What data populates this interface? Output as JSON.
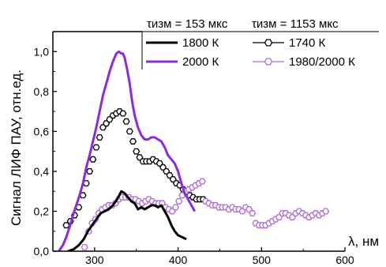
{
  "chart_data": {
    "type": "line",
    "ylabel": "Сигнал ЛИФ ПАУ, отн.ед.",
    "xlabel": "λ, нм",
    "xlim": [
      250,
      600
    ],
    "ylim": [
      0,
      1.1
    ],
    "x_ticks": [
      300,
      400,
      500,
      600
    ],
    "x_tick_labels": [
      "300",
      "400",
      "500",
      "600"
    ],
    "y_ticks": [
      0,
      0.2,
      0.4,
      0.6,
      0.8,
      1.0
    ],
    "y_tick_labels": [
      "0,0",
      "0,2",
      "0,4",
      "0,6",
      "0,8",
      "1,0"
    ],
    "grid": false,
    "legend_position": "top-right",
    "legend_headers": [
      "τизм = 153 мкс",
      "τизм = 1153 мкс"
    ],
    "colors": {
      "black": "#000000",
      "purple": "#8a2be2",
      "light_purple": "#b06ad8"
    },
    "series": [
      {
        "name": "1800 К",
        "style": "line",
        "color": "#000000",
        "points": [
          [
            268,
            0
          ],
          [
            275,
            0.01
          ],
          [
            281,
            0.03
          ],
          [
            287,
            0.06
          ],
          [
            292,
            0.1
          ],
          [
            297,
            0.13
          ],
          [
            302,
            0.16
          ],
          [
            307,
            0.19
          ],
          [
            312,
            0.2
          ],
          [
            317,
            0.21
          ],
          [
            322,
            0.23
          ],
          [
            327,
            0.26
          ],
          [
            332,
            0.3
          ],
          [
            336,
            0.29
          ],
          [
            340,
            0.27
          ],
          [
            344,
            0.25
          ],
          [
            348,
            0.24
          ],
          [
            352,
            0.21
          ],
          [
            356,
            0.22
          ],
          [
            360,
            0.21
          ],
          [
            364,
            0.22
          ],
          [
            368,
            0.23
          ],
          [
            372,
            0.23
          ],
          [
            376,
            0.22
          ],
          [
            380,
            0.23
          ],
          [
            384,
            0.2
          ],
          [
            388,
            0.17
          ],
          [
            392,
            0.13
          ],
          [
            396,
            0.1
          ],
          [
            400,
            0.08
          ],
          [
            405,
            0.07
          ],
          [
            410,
            0.06
          ]
        ]
      },
      {
        "name": "2000 К",
        "style": "line",
        "color": "#8a2be2",
        "points": [
          [
            257,
            0
          ],
          [
            262,
            0.03
          ],
          [
            266,
            0.07
          ],
          [
            270,
            0.12
          ],
          [
            274,
            0.18
          ],
          [
            278,
            0.23
          ],
          [
            282,
            0.28
          ],
          [
            286,
            0.34
          ],
          [
            290,
            0.42
          ],
          [
            294,
            0.48
          ],
          [
            298,
            0.55
          ],
          [
            302,
            0.62
          ],
          [
            306,
            0.7
          ],
          [
            310,
            0.78
          ],
          [
            314,
            0.84
          ],
          [
            318,
            0.9
          ],
          [
            322,
            0.95
          ],
          [
            326,
            0.99
          ],
          [
            329,
            1.0
          ],
          [
            332,
            0.99
          ],
          [
            334,
            0.99
          ],
          [
            336,
            0.97
          ],
          [
            339,
            0.91
          ],
          [
            342,
            0.84
          ],
          [
            345,
            0.75
          ],
          [
            348,
            0.68
          ],
          [
            352,
            0.62
          ],
          [
            356,
            0.58
          ],
          [
            360,
            0.56
          ],
          [
            364,
            0.56
          ],
          [
            368,
            0.57
          ],
          [
            372,
            0.57
          ],
          [
            376,
            0.56
          ],
          [
            380,
            0.55
          ],
          [
            384,
            0.52
          ],
          [
            388,
            0.48
          ],
          [
            392,
            0.46
          ],
          [
            396,
            0.44
          ],
          [
            400,
            0.4
          ],
          [
            404,
            0.34
          ],
          [
            408,
            0.29
          ],
          [
            412,
            0.26
          ],
          [
            416,
            0.23
          ],
          [
            420,
            0.2
          ]
        ]
      },
      {
        "name": "1740 К",
        "style": "hexagon-markers",
        "color": "#000000",
        "points": [
          [
            266,
            0.13
          ],
          [
            271,
            0.15
          ],
          [
            276,
            0.18
          ],
          [
            281,
            0.22
          ],
          [
            286,
            0.28
          ],
          [
            290,
            0.34
          ],
          [
            294,
            0.4
          ],
          [
            298,
            0.46
          ],
          [
            302,
            0.52
          ],
          [
            306,
            0.57
          ],
          [
            310,
            0.62
          ],
          [
            314,
            0.64
          ],
          [
            318,
            0.66
          ],
          [
            322,
            0.68
          ],
          [
            326,
            0.69
          ],
          [
            330,
            0.7
          ],
          [
            334,
            0.69
          ],
          [
            338,
            0.65
          ],
          [
            342,
            0.6
          ],
          [
            346,
            0.55
          ],
          [
            350,
            0.5
          ],
          [
            354,
            0.47
          ],
          [
            358,
            0.45
          ],
          [
            362,
            0.45
          ],
          [
            366,
            0.45
          ],
          [
            370,
            0.46
          ],
          [
            374,
            0.45
          ],
          [
            378,
            0.44
          ],
          [
            382,
            0.42
          ],
          [
            386,
            0.4
          ],
          [
            390,
            0.38
          ],
          [
            394,
            0.36
          ],
          [
            398,
            0.34
          ],
          [
            402,
            0.33
          ],
          [
            406,
            0.31
          ],
          [
            410,
            0.3
          ],
          [
            414,
            0.28
          ],
          [
            418,
            0.27
          ],
          [
            422,
            0.26
          ],
          [
            426,
            0.26
          ],
          [
            430,
            0.26
          ]
        ]
      },
      {
        "name": "1980/2000 К",
        "style": "hexagon-markers",
        "color": "#b06ad8",
        "points": [
          [
            288,
            0.02
          ],
          [
            293,
            0.1
          ],
          [
            297,
            0.14
          ],
          [
            301,
            0.16
          ],
          [
            305,
            0.19
          ],
          [
            309,
            0.21
          ],
          [
            313,
            0.22
          ],
          [
            317,
            0.23
          ],
          [
            321,
            0.23
          ],
          [
            325,
            0.24
          ],
          [
            329,
            0.26
          ],
          [
            333,
            0.27
          ],
          [
            337,
            0.27
          ],
          [
            341,
            0.27
          ],
          [
            345,
            0.26
          ],
          [
            349,
            0.26
          ],
          [
            353,
            0.25
          ],
          [
            357,
            0.24
          ],
          [
            361,
            0.25
          ],
          [
            365,
            0.26
          ],
          [
            369,
            0.25
          ],
          [
            373,
            0.24
          ],
          [
            377,
            0.24
          ],
          [
            381,
            0.24
          ],
          [
            385,
            0.22
          ],
          [
            389,
            0.21
          ],
          [
            393,
            0.2
          ],
          [
            397,
            0.22
          ],
          [
            401,
            0.25
          ],
          [
            405,
            0.28
          ],
          [
            409,
            0.3
          ],
          [
            413,
            0.31
          ],
          [
            417,
            0.32
          ],
          [
            421,
            0.33
          ],
          [
            425,
            0.34
          ],
          [
            429,
            0.35
          ],
          [
            433,
            0.25
          ],
          [
            437,
            0.24
          ],
          [
            441,
            0.23
          ],
          [
            445,
            0.23
          ],
          [
            449,
            0.22
          ],
          [
            453,
            0.22
          ],
          [
            457,
            0.22
          ],
          [
            461,
            0.21
          ],
          [
            465,
            0.22
          ],
          [
            469,
            0.21
          ],
          [
            473,
            0.21
          ],
          [
            477,
            0.2
          ],
          [
            481,
            0.22
          ],
          [
            485,
            0.21
          ],
          [
            489,
            0.19
          ],
          [
            493,
            0.14
          ],
          [
            497,
            0.13
          ],
          [
            501,
            0.13
          ],
          [
            505,
            0.13
          ],
          [
            509,
            0.14
          ],
          [
            513,
            0.15
          ],
          [
            517,
            0.16
          ],
          [
            521,
            0.17
          ],
          [
            525,
            0.19
          ],
          [
            529,
            0.19
          ],
          [
            533,
            0.18
          ],
          [
            537,
            0.17
          ],
          [
            541,
            0.19
          ],
          [
            545,
            0.2
          ],
          [
            549,
            0.19
          ],
          [
            553,
            0.18
          ],
          [
            557,
            0.17
          ],
          [
            561,
            0.18
          ],
          [
            565,
            0.19
          ],
          [
            569,
            0.18
          ],
          [
            573,
            0.19
          ],
          [
            577,
            0.2
          ]
        ]
      }
    ]
  }
}
